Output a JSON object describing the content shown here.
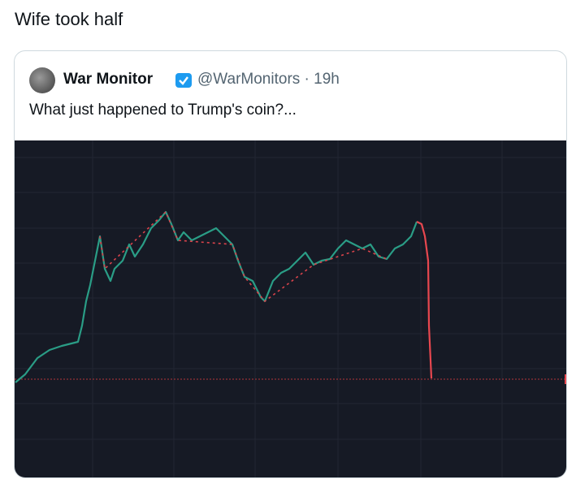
{
  "post": {
    "text": "Wife took half"
  },
  "quoted": {
    "name": "War Monitor",
    "handle": "@WarMonitors",
    "separator": "·",
    "time": "19h",
    "text": "What just happened to Trump's coin?..."
  }
}
